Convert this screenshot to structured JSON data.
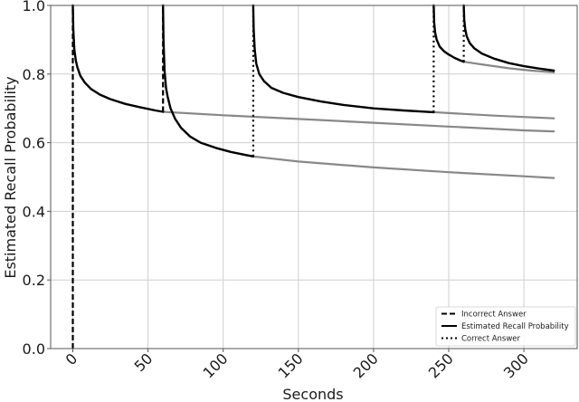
{
  "chart_data": {
    "type": "line",
    "title": "",
    "xlabel": "Seconds",
    "ylabel": "Estimated Recall Probability",
    "xlim": [
      -15,
      335
    ],
    "ylim": [
      0.0,
      1.0
    ],
    "grid": true,
    "xticks": [
      0,
      50,
      100,
      150,
      200,
      250,
      300
    ],
    "xtick_labels": [
      "0",
      "50",
      "100",
      "150",
      "200",
      "250",
      "300"
    ],
    "yticks": [
      0.0,
      0.2,
      0.4,
      0.6,
      0.8,
      1.0
    ],
    "ytick_labels": [
      "0.0",
      "0.2",
      "0.4",
      "0.6",
      "0.8",
      "1.0"
    ],
    "legend_position": "lower right",
    "legend": [
      {
        "label": "Incorrect Answer",
        "style": "dashed"
      },
      {
        "label": "Estimated Recall Probability",
        "style": "solid"
      },
      {
        "label": "Correct Answer",
        "style": "dotted"
      }
    ],
    "events": [
      {
        "t": 0,
        "type": "Incorrect Answer",
        "from": 0.0,
        "to": 1.0
      },
      {
        "t": 60,
        "type": "Incorrect Answer",
        "from": 0.69,
        "to": 1.0
      },
      {
        "t": 120,
        "type": "Correct Answer",
        "from": 0.56,
        "to": 1.0
      },
      {
        "t": 240,
        "type": "Correct Answer",
        "from": 0.689,
        "to": 1.0
      },
      {
        "t": 260,
        "type": "Correct Answer",
        "from": 0.836,
        "to": 1.0
      }
    ],
    "series": [
      {
        "name": "Estimated Recall Probability (after t=0)",
        "color": "#000000",
        "x": [
          0,
          0.3,
          1,
          2,
          3,
          5,
          8,
          12,
          18,
          25,
          35,
          45,
          55,
          60
        ],
        "y": [
          1.0,
          0.93,
          0.87,
          0.84,
          0.82,
          0.795,
          0.775,
          0.757,
          0.74,
          0.727,
          0.713,
          0.703,
          0.694,
          0.69
        ]
      },
      {
        "name": "Projected decay from t=60 (not reviewed)",
        "color": "#888888",
        "x": [
          60,
          100,
          150,
          200,
          250,
          300,
          320
        ],
        "y": [
          0.69,
          0.68,
          0.669,
          0.658,
          0.647,
          0.636,
          0.633
        ]
      },
      {
        "name": "Estimated Recall Probability (after t=60)",
        "color": "#000000",
        "x": [
          60,
          60.3,
          61,
          62,
          63,
          65,
          68,
          72,
          78,
          85,
          95,
          105,
          115,
          120
        ],
        "y": [
          1.0,
          0.9,
          0.81,
          0.76,
          0.735,
          0.7,
          0.67,
          0.643,
          0.618,
          0.6,
          0.585,
          0.573,
          0.564,
          0.56
        ]
      },
      {
        "name": "Projected decay from t=120 (not reviewed)",
        "color": "#888888",
        "x": [
          120,
          150,
          200,
          250,
          300,
          320
        ],
        "y": [
          0.56,
          0.545,
          0.528,
          0.514,
          0.502,
          0.497
        ]
      },
      {
        "name": "Estimated Recall Probability (after t=120)",
        "color": "#000000",
        "x": [
          120,
          120.3,
          121,
          122,
          124,
          127,
          132,
          140,
          150,
          165,
          180,
          200,
          220,
          240
        ],
        "y": [
          1.0,
          0.93,
          0.87,
          0.83,
          0.8,
          0.78,
          0.76,
          0.745,
          0.733,
          0.72,
          0.71,
          0.7,
          0.694,
          0.689
        ]
      },
      {
        "name": "Projected decay from t=240 (not reviewed)",
        "color": "#888888",
        "x": [
          240,
          260,
          280,
          300,
          320
        ],
        "y": [
          0.689,
          0.684,
          0.679,
          0.675,
          0.671
        ]
      },
      {
        "name": "Estimated Recall Probability (after t=240)",
        "color": "#000000",
        "x": [
          240,
          240.3,
          241,
          242,
          244,
          247,
          250,
          254,
          258,
          260
        ],
        "y": [
          1.0,
          0.95,
          0.92,
          0.9,
          0.88,
          0.866,
          0.857,
          0.847,
          0.839,
          0.836
        ]
      },
      {
        "name": "Projected decay from t=260 (not reviewed)",
        "color": "#888888",
        "x": [
          260,
          275,
          290,
          305,
          320
        ],
        "y": [
          0.836,
          0.826,
          0.817,
          0.81,
          0.805
        ]
      },
      {
        "name": "Estimated Recall Probability (after t=260)",
        "color": "#000000",
        "x": [
          260,
          260.3,
          261,
          262,
          264,
          267,
          272,
          280,
          290,
          300,
          310,
          320
        ],
        "y": [
          1.0,
          0.96,
          0.93,
          0.91,
          0.89,
          0.875,
          0.86,
          0.845,
          0.832,
          0.823,
          0.816,
          0.81
        ]
      }
    ]
  }
}
